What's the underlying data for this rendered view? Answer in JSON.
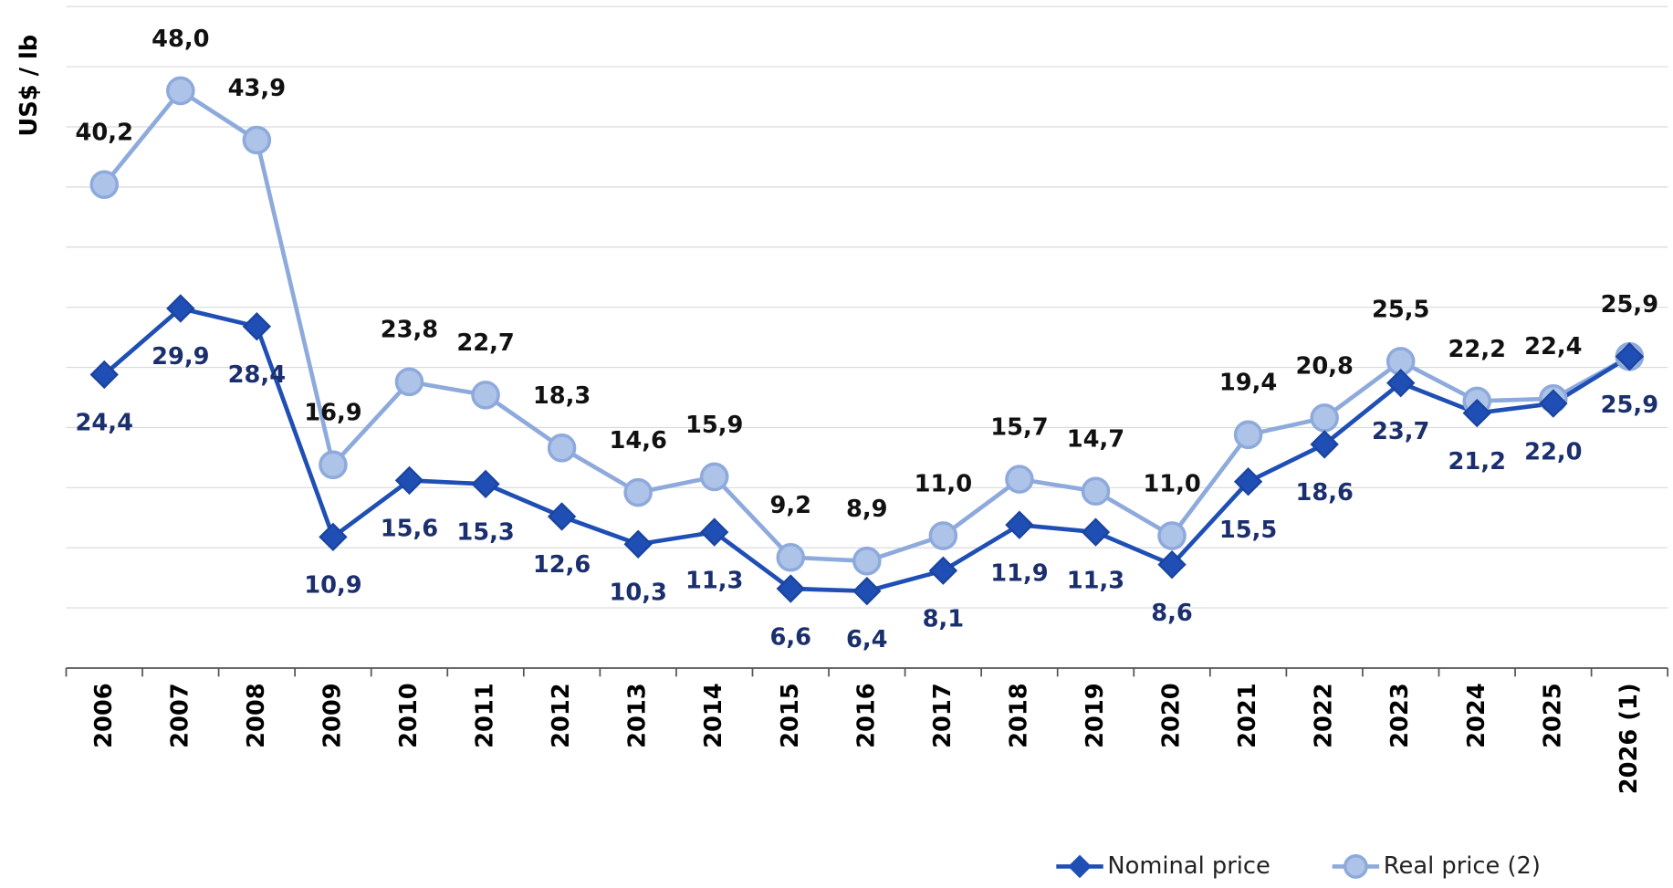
{
  "chart_data": {
    "type": "line",
    "y_label": "US$ / lb",
    "categories": [
      "2006",
      "2007",
      "2008",
      "2009",
      "2010",
      "2011",
      "2012",
      "2013",
      "2014",
      "2015",
      "2016",
      "2017",
      "2018",
      "2019",
      "2020",
      "2021",
      "2022",
      "2023",
      "2024",
      "2025",
      "2026 (1)"
    ],
    "series": [
      {
        "name": "Nominal price",
        "color": "#1f4fb4",
        "label_color": "#1b2f6e",
        "marker": "diamond",
        "values": [
          24.4,
          29.9,
          28.4,
          10.9,
          15.6,
          15.3,
          12.6,
          10.3,
          11.3,
          6.6,
          6.4,
          8.1,
          11.9,
          11.3,
          8.6,
          15.5,
          18.6,
          23.7,
          21.2,
          22.0,
          25.9
        ],
        "value_labels": [
          "24,4",
          "29,9",
          "28,4",
          "10,9",
          "15,6",
          "15,3",
          "12,6",
          "10,3",
          "11,3",
          "6,6",
          "6,4",
          "8,1",
          "11,9",
          "11,3",
          "8,6",
          "15,5",
          "18,6",
          "23,7",
          "21,2",
          "22,0",
          "25,9"
        ]
      },
      {
        "name": "Real price (2)",
        "color": "#8eaadc",
        "label_color": "#111111",
        "marker": "circle",
        "values": [
          40.2,
          48.0,
          43.9,
          16.9,
          23.8,
          22.7,
          18.3,
          14.6,
          15.9,
          9.2,
          8.9,
          11.0,
          15.7,
          14.7,
          11.0,
          19.4,
          20.8,
          25.5,
          22.2,
          22.4,
          25.9
        ],
        "value_labels": [
          "40,2",
          "48,0",
          "43,9",
          "16,9",
          "23,8",
          "22,7",
          "18,3",
          "14,6",
          "15,9",
          "9,2",
          "8,9",
          "11,0",
          "15,7",
          "14,7",
          "11,0",
          "19,4",
          "20,8",
          "25,5",
          "22,2",
          "22,4",
          "25,9"
        ]
      }
    ],
    "ylim": [
      0,
      55
    ],
    "yticks": [
      0,
      5,
      10,
      15,
      20,
      25,
      30,
      35,
      40,
      45,
      50,
      55
    ],
    "grid": true,
    "legend": "bottom-right"
  }
}
